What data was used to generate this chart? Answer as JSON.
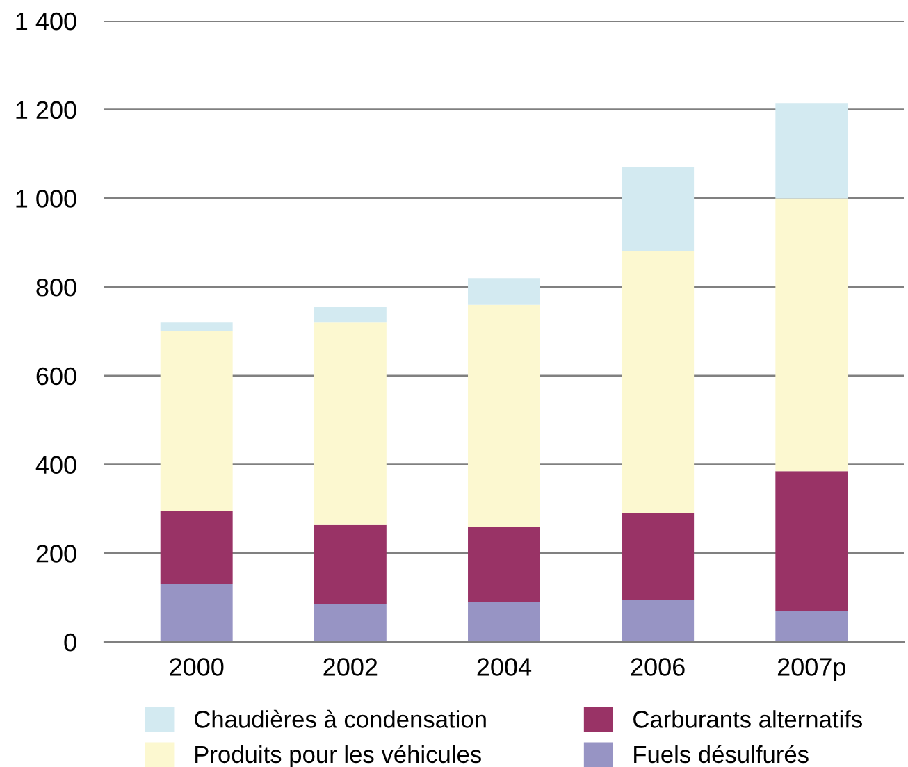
{
  "chart_data": {
    "type": "bar",
    "stacked": true,
    "categories": [
      "2000",
      "2002",
      "2004",
      "2006",
      "2007p"
    ],
    "series": [
      {
        "name": "Fuels désulfurés",
        "color": "#9794c4",
        "values": [
          130,
          85,
          90,
          95,
          70
        ]
      },
      {
        "name": "Carburants alternatifs",
        "color": "#993366",
        "values": [
          165,
          180,
          170,
          195,
          315
        ]
      },
      {
        "name": "Produits pour les véhicules",
        "color": "#fcf8d0",
        "values": [
          405,
          455,
          500,
          590,
          615
        ]
      },
      {
        "name": "Chaudières à condensation",
        "color": "#d3eaf1",
        "values": [
          20,
          35,
          60,
          190,
          215
        ]
      }
    ],
    "ylim": [
      0,
      1400
    ],
    "yticks": [
      0,
      200,
      400,
      600,
      800,
      {
        "value": 1000,
        "label": "1 000"
      },
      {
        "value": 1200,
        "label": "1 200"
      },
      {
        "value": 1400,
        "label": "1 400"
      }
    ],
    "grid": "y",
    "legend": "bottom"
  }
}
